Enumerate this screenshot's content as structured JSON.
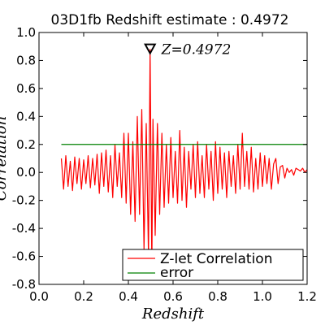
{
  "chart_data": {
    "type": "line",
    "title": "03D1fb Redshift estimate : 0.4972",
    "xlabel": "Redshift",
    "ylabel": "Correlation",
    "xlim": [
      0.0,
      1.2
    ],
    "ylim": [
      -0.8,
      1.0
    ],
    "x_ticks": [
      "0.0",
      "0.2",
      "0.4",
      "0.6",
      "0.8",
      "1.0",
      "1.2"
    ],
    "y_ticks": [
      "1.0",
      "0.8",
      "0.6",
      "0.4",
      "0.2",
      "0.0",
      "-0.2",
      "-0.4",
      "-0.6",
      "-0.8"
    ],
    "grid": false,
    "legend_position": "bottom-right",
    "series": [
      {
        "name": "Z-let Correlation",
        "color": "#ff0000",
        "x": [
          0.1,
          0.11,
          0.12,
          0.13,
          0.14,
          0.15,
          0.16,
          0.17,
          0.18,
          0.19,
          0.2,
          0.21,
          0.22,
          0.23,
          0.24,
          0.25,
          0.26,
          0.27,
          0.28,
          0.29,
          0.3,
          0.31,
          0.32,
          0.33,
          0.34,
          0.35,
          0.36,
          0.37,
          0.38,
          0.39,
          0.4,
          0.41,
          0.42,
          0.43,
          0.44,
          0.45,
          0.46,
          0.47,
          0.48,
          0.49,
          0.4972,
          0.505,
          0.51,
          0.52,
          0.53,
          0.54,
          0.55,
          0.56,
          0.57,
          0.58,
          0.59,
          0.6,
          0.61,
          0.62,
          0.63,
          0.64,
          0.65,
          0.66,
          0.67,
          0.68,
          0.69,
          0.7,
          0.71,
          0.72,
          0.73,
          0.74,
          0.75,
          0.76,
          0.77,
          0.78,
          0.79,
          0.8,
          0.81,
          0.82,
          0.83,
          0.84,
          0.85,
          0.86,
          0.87,
          0.88,
          0.89,
          0.9,
          0.91,
          0.92,
          0.93,
          0.94,
          0.95,
          0.96,
          0.97,
          0.98,
          0.99,
          1.0,
          1.01,
          1.02,
          1.03,
          1.04,
          1.05,
          1.06,
          1.07,
          1.08,
          1.09,
          1.1,
          1.11,
          1.12,
          1.13,
          1.14,
          1.15,
          1.16,
          1.17,
          1.18,
          1.19,
          1.2
        ],
        "y": [
          0.1,
          -0.12,
          0.12,
          -0.1,
          0.08,
          -0.13,
          0.11,
          -0.08,
          0.1,
          -0.12,
          0.09,
          -0.08,
          0.12,
          -0.11,
          0.1,
          -0.09,
          0.13,
          -0.15,
          0.14,
          -0.1,
          0.16,
          -0.14,
          0.12,
          -0.18,
          0.2,
          -0.1,
          0.14,
          -0.18,
          0.28,
          -0.22,
          0.28,
          -0.3,
          0.22,
          -0.35,
          0.4,
          -0.3,
          0.45,
          -0.55,
          0.35,
          -0.6,
          0.88,
          -0.7,
          0.38,
          -0.45,
          0.35,
          -0.3,
          0.28,
          -0.25,
          0.2,
          -0.22,
          0.25,
          -0.18,
          0.15,
          -0.22,
          0.3,
          -0.2,
          0.18,
          -0.25,
          0.15,
          -0.12,
          0.2,
          -0.18,
          0.22,
          -0.15,
          0.12,
          -0.18,
          0.2,
          -0.12,
          0.15,
          -0.2,
          0.22,
          -0.15,
          0.18,
          -0.12,
          0.14,
          -0.18,
          0.15,
          -0.1,
          0.12,
          -0.15,
          0.2,
          -0.12,
          0.28,
          -0.1,
          0.15,
          -0.12,
          0.18,
          -0.14,
          0.1,
          -0.12,
          0.14,
          -0.1,
          0.12,
          -0.08,
          0.1,
          -0.12,
          0.06,
          0.1,
          -0.08,
          0.04,
          0.05,
          -0.04,
          0.03,
          0.0,
          0.02,
          -0.02,
          0.03,
          0.02,
          0.01,
          0.03,
          0.0,
          0.02
        ]
      },
      {
        "name": "error",
        "color": "#008000",
        "x": [
          0.1,
          1.2
        ],
        "y": [
          0.2,
          0.2
        ]
      }
    ],
    "annotations": [
      {
        "text": "Z=0.4972",
        "x": 0.4972,
        "y": 0.88,
        "marker": "triangle-down"
      }
    ]
  }
}
